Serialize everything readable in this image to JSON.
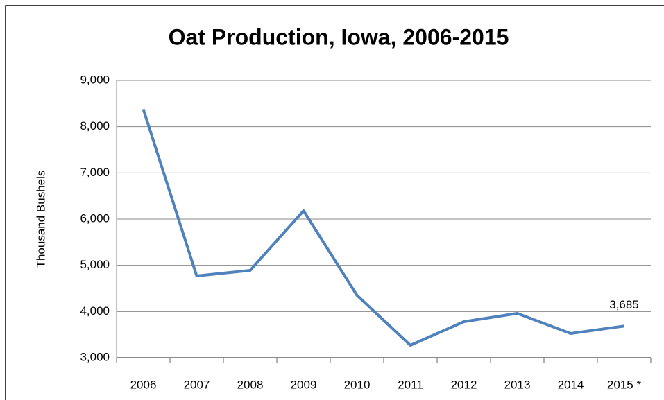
{
  "chart_data": {
    "type": "line",
    "title": "Oat Production, Iowa, 2006-2015",
    "y_label": "Thousand Bushels",
    "categories": [
      "2006",
      "2007",
      "2008",
      "2009",
      "2010",
      "2011",
      "2012",
      "2013",
      "2014",
      "2015 *"
    ],
    "series": [
      {
        "name": "Oat Production",
        "color": "#4f81bd",
        "values": [
          8380,
          4770,
          4890,
          6180,
          4350,
          3270,
          3780,
          3960,
          3525,
          3685
        ],
        "value_labels": [
          null,
          null,
          null,
          null,
          null,
          null,
          null,
          null,
          null,
          "3,685"
        ]
      }
    ],
    "ylim": [
      3000,
      9000
    ],
    "yticks": [
      {
        "value": 3000,
        "label": "3,000"
      },
      {
        "value": 4000,
        "label": "4,000"
      },
      {
        "value": 5000,
        "label": "5,000"
      },
      {
        "value": 6000,
        "label": "6,000"
      },
      {
        "value": 7000,
        "label": "7,000"
      },
      {
        "value": 8000,
        "label": "8,000"
      },
      {
        "value": 9000,
        "label": "9,000"
      }
    ],
    "grid": true
  }
}
